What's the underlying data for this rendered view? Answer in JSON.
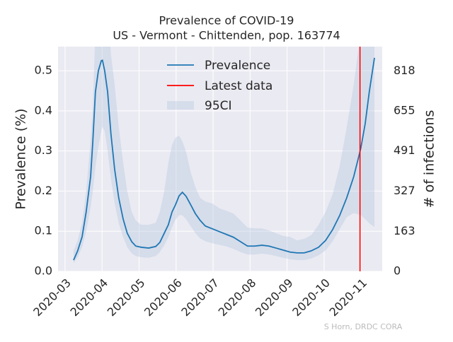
{
  "chart_data": {
    "type": "line",
    "title": "Prevalence of COVID-19",
    "subtitle": "US - Vermont - Chittenden, pop. 163774",
    "y_label": "Prevalence (%)",
    "y2_label": "# of infections",
    "credit": "S Horn, DRDC CORA",
    "x": [
      0.23,
      0.34,
      0.46,
      0.57,
      0.69,
      0.75,
      0.82,
      0.9,
      0.98,
      1.01,
      1.07,
      1.15,
      1.24,
      1.34,
      1.45,
      1.57,
      1.68,
      1.8,
      1.91,
      2.06,
      2.26,
      2.45,
      2.56,
      2.68,
      2.79,
      2.89,
      2.98,
      3.08,
      3.17,
      3.27,
      3.4,
      3.52,
      3.65,
      3.79,
      3.98,
      4.17,
      4.36,
      4.55,
      4.74,
      4.93,
      5.12,
      5.32,
      5.51,
      5.7,
      5.89,
      6.08,
      6.27,
      6.46,
      6.65,
      6.85,
      7.04,
      7.23,
      7.42,
      7.61,
      7.8,
      7.99,
      8.11,
      8.22,
      8.36
    ],
    "series": [
      {
        "name": "Prevalence",
        "color": "#1f77b4",
        "values": [
          0.028,
          0.051,
          0.086,
          0.148,
          0.236,
          0.324,
          0.447,
          0.5,
          0.525,
          0.526,
          0.5,
          0.447,
          0.342,
          0.254,
          0.183,
          0.13,
          0.095,
          0.074,
          0.063,
          0.06,
          0.058,
          0.062,
          0.072,
          0.095,
          0.116,
          0.148,
          0.165,
          0.188,
          0.197,
          0.187,
          0.165,
          0.144,
          0.127,
          0.113,
          0.106,
          0.099,
          0.092,
          0.085,
          0.074,
          0.063,
          0.063,
          0.065,
          0.063,
          0.058,
          0.053,
          0.048,
          0.046,
          0.046,
          0.051,
          0.06,
          0.077,
          0.104,
          0.139,
          0.183,
          0.236,
          0.306,
          0.368,
          0.447,
          0.532
        ]
      }
    ],
    "band": {
      "name": "95CI",
      "color": "#b0c4de",
      "upper": [
        0.051,
        0.077,
        0.121,
        0.2,
        0.324,
        0.41,
        0.6,
        0.7,
        0.75,
        0.75,
        0.72,
        0.65,
        0.54,
        0.465,
        0.36,
        0.27,
        0.2,
        0.148,
        0.127,
        0.116,
        0.116,
        0.121,
        0.148,
        0.2,
        0.27,
        0.315,
        0.333,
        0.338,
        0.324,
        0.298,
        0.245,
        0.21,
        0.183,
        0.174,
        0.169,
        0.157,
        0.151,
        0.144,
        0.127,
        0.109,
        0.107,
        0.107,
        0.102,
        0.095,
        0.088,
        0.086,
        0.077,
        0.081,
        0.09,
        0.116,
        0.148,
        0.192,
        0.262,
        0.359,
        0.465,
        0.6,
        0.7,
        0.8,
        0.9
      ],
      "lower": [
        0.02,
        0.035,
        0.06,
        0.1,
        0.16,
        0.2,
        0.26,
        0.31,
        0.35,
        0.36,
        0.35,
        0.3,
        0.23,
        0.17,
        0.12,
        0.085,
        0.06,
        0.045,
        0.038,
        0.035,
        0.034,
        0.038,
        0.048,
        0.065,
        0.085,
        0.11,
        0.128,
        0.14,
        0.14,
        0.13,
        0.112,
        0.095,
        0.082,
        0.075,
        0.07,
        0.066,
        0.062,
        0.056,
        0.048,
        0.042,
        0.042,
        0.044,
        0.042,
        0.038,
        0.034,
        0.03,
        0.028,
        0.028,
        0.032,
        0.04,
        0.052,
        0.075,
        0.105,
        0.135,
        0.145,
        0.14,
        0.13,
        0.12,
        0.11
      ]
    },
    "vline": {
      "name": "Latest data",
      "x": 7.97,
      "color": "#ff0000"
    },
    "xlim": [
      -0.19,
      8.57
    ],
    "xticks": [
      {
        "value": 0,
        "label": "2020-03"
      },
      {
        "value": 1,
        "label": "2020-04"
      },
      {
        "value": 2,
        "label": "2020-05"
      },
      {
        "value": 3,
        "label": "2020-06"
      },
      {
        "value": 4,
        "label": "2020-07"
      },
      {
        "value": 5,
        "label": "2020-08"
      },
      {
        "value": 6,
        "label": "2020-09"
      },
      {
        "value": 7,
        "label": "2020-10"
      },
      {
        "value": 8,
        "label": "2020-11"
      }
    ],
    "ylim": [
      0,
      0.56
    ],
    "yticks": [
      {
        "value": 0,
        "label": "0.0"
      },
      0.1,
      0.2,
      0.3,
      0.4,
      0.5
    ],
    "y2lim": [
      0,
      917
    ],
    "y2ticks": [
      0,
      163,
      327,
      491,
      655,
      818
    ],
    "grid": true,
    "legend": "upper center"
  }
}
